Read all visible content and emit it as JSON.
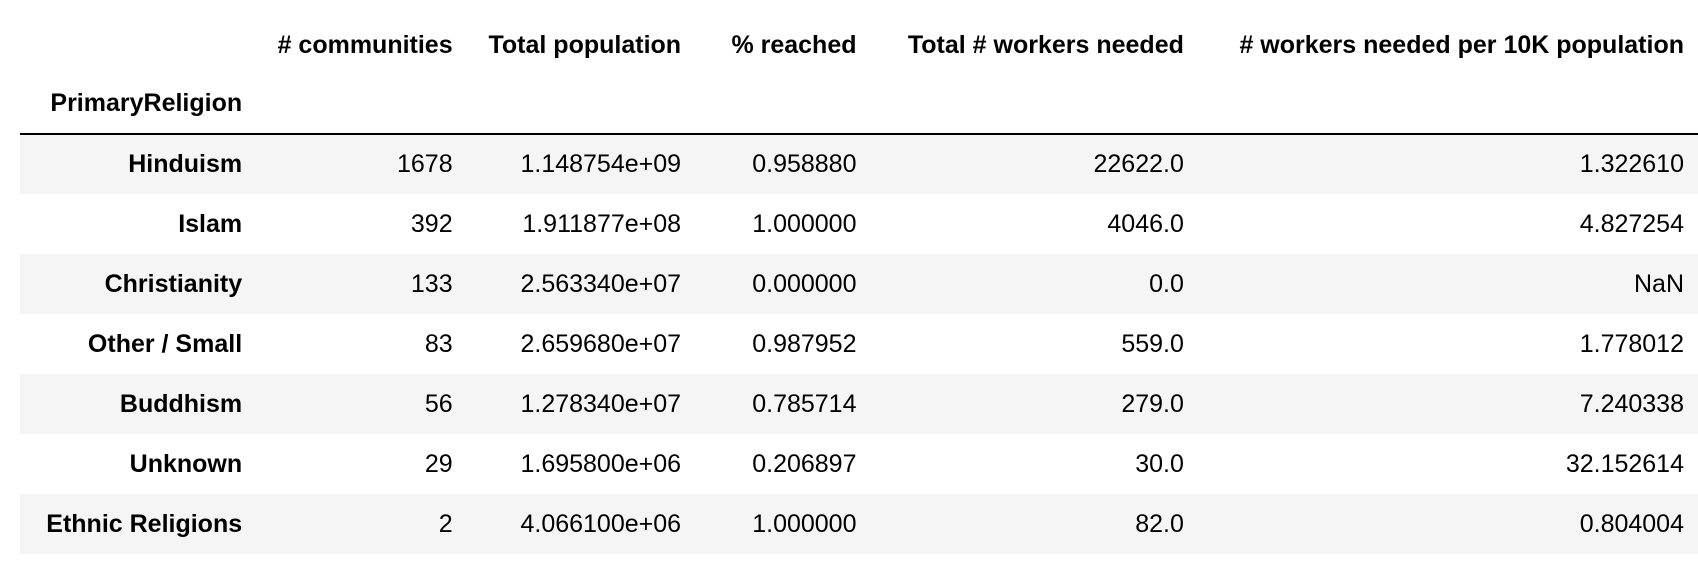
{
  "table": {
    "columns": [
      "# communities",
      "Total population",
      "% reached",
      "Total # workers needed",
      "# workers needed per 10K population"
    ],
    "index_name": "PrimaryReligion",
    "rows": [
      {
        "label": "Hinduism",
        "values": [
          "1678",
          "1.148754e+09",
          "0.958880",
          "22622.0",
          "1.322610"
        ]
      },
      {
        "label": "Islam",
        "values": [
          "392",
          "1.911877e+08",
          "1.000000",
          "4046.0",
          "4.827254"
        ]
      },
      {
        "label": "Christianity",
        "values": [
          "133",
          "2.563340e+07",
          "0.000000",
          "0.0",
          "NaN"
        ]
      },
      {
        "label": "Other / Small",
        "values": [
          "83",
          "2.659680e+07",
          "0.987952",
          "559.0",
          "1.778012"
        ]
      },
      {
        "label": "Buddhism",
        "values": [
          "56",
          "1.278340e+07",
          "0.785714",
          "279.0",
          "7.240338"
        ]
      },
      {
        "label": "Unknown",
        "values": [
          "29",
          "1.695800e+06",
          "0.206897",
          "30.0",
          "32.152614"
        ]
      },
      {
        "label": "Ethnic Religions",
        "values": [
          "2",
          "4.066100e+06",
          "1.000000",
          "82.0",
          "0.804004"
        ]
      }
    ]
  }
}
